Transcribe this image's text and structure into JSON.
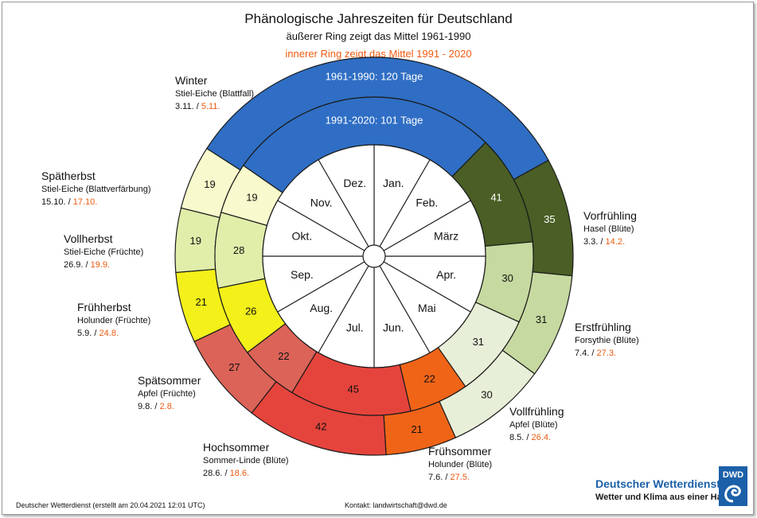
{
  "title": "Phänologische Jahreszeiten für Deutschland",
  "subtitle_outer": "äußerer Ring zeigt das Mittel 1961-1990",
  "subtitle_inner": "innerer Ring zeigt das Mittel 1991 - 2020",
  "footer": {
    "left": "Deutscher Wetterdienst (erstellt am 20.04.2021 12:01 UTC)",
    "contact": "Kontakt: landwirtschaft@dwd.de",
    "org_name": "Deutscher Wetterdienst",
    "org_slogan": "Wetter und Klima aus einer Hand",
    "logo_text": "DWD"
  },
  "colors": {
    "accent_orange": "#ee5a10",
    "dwd_blue": "#1b60a8"
  },
  "chart_data": {
    "type": "donut",
    "months": [
      "Jan.",
      "Feb.",
      "März",
      "Apr.",
      "Mai",
      "Jun.",
      "Jul.",
      "Aug.",
      "Sep.",
      "Okt.",
      "Nov.",
      "Dez."
    ],
    "rings": [
      {
        "name": "1961-1990",
        "winter_label": "1961-1990: 120 Tage",
        "start_day": 62,
        "values": [
          35,
          31,
          30,
          21,
          42,
          27,
          21,
          19,
          19,
          120
        ]
      },
      {
        "name": "1991-2020",
        "winter_label": "1991-2020: 101 Tage",
        "start_day": 45,
        "values": [
          41,
          30,
          31,
          22,
          45,
          22,
          26,
          28,
          19,
          101
        ]
      }
    ],
    "seasons": [
      {
        "name": "Vorfrühling",
        "indicator": "Hasel (Blüte)",
        "date_1961": "3.3.",
        "date_1991": "14.2.",
        "color": "#4a5e25"
      },
      {
        "name": "Erstfrühling",
        "indicator": "Forsythie (Blüte)",
        "date_1961": "7.4.",
        "date_1991": "27.3.",
        "color": "#c6d9a0"
      },
      {
        "name": "Vollfrühling",
        "indicator": "Apfel (Blüte)",
        "date_1961": "8.5.",
        "date_1991": "26.4.",
        "color": "#e8efd8"
      },
      {
        "name": "Frühsommer",
        "indicator": "Holunder (Blüte)",
        "date_1961": "7.6.",
        "date_1991": "27.5.",
        "color": "#f06418"
      },
      {
        "name": "Hochsommer",
        "indicator": "Sommer-Linde (Blüte)",
        "date_1961": "28.6.",
        "date_1991": "18.6.",
        "color": "#e5443c"
      },
      {
        "name": "Spätsommer",
        "indicator": "Apfel (Früchte)",
        "date_1961": "9.8.",
        "date_1991": "2.8.",
        "color": "#dc6358"
      },
      {
        "name": "Frühherbst",
        "indicator": "Holunder (Früchte)",
        "date_1961": "5.9.",
        "date_1991": "24.8.",
        "color": "#f3f01a"
      },
      {
        "name": "Vollherbst",
        "indicator": "Stiel-Eiche (Früchte)",
        "date_1961": "26.9.",
        "date_1991": "19.9.",
        "color": "#e0eeaa"
      },
      {
        "name": "Spätherbst",
        "indicator": "Stiel-Eiche (Blattverfärbung)",
        "date_1961": "15.10.",
        "date_1991": "17.10.",
        "color": "#f8f9cc"
      },
      {
        "name": "Winter",
        "indicator": "Stiel-Eiche (Blattfall)",
        "date_1961": "3.11.",
        "date_1991": "5.11.",
        "color": "#2f6ec4"
      }
    ]
  }
}
